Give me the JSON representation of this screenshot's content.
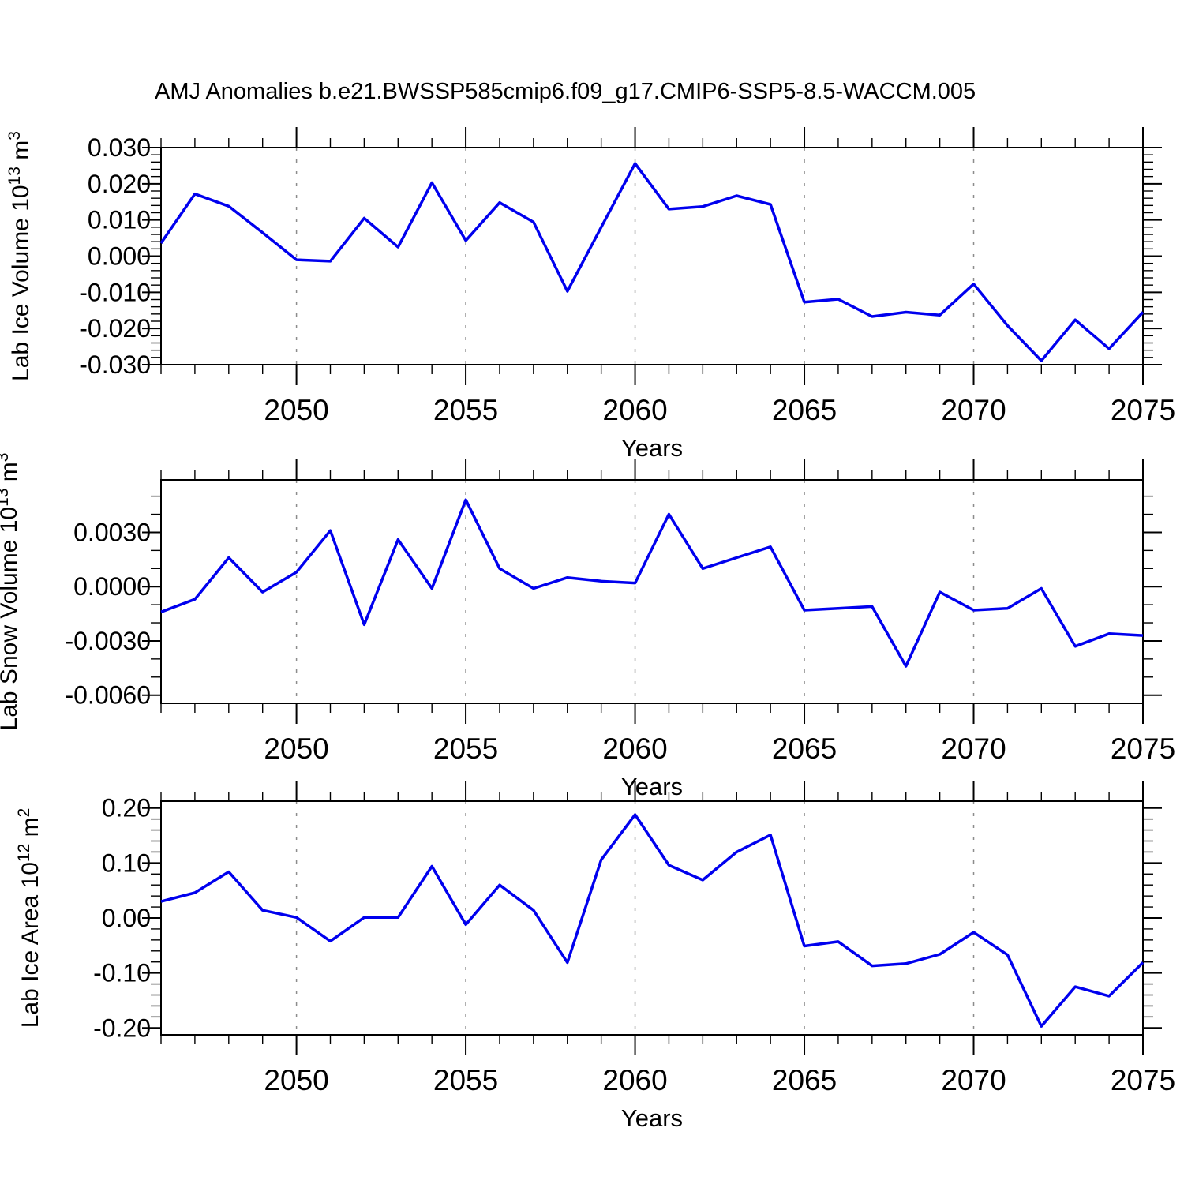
{
  "title": "AMJ Anomalies b.e21.BWSSP585cmip6.f09_g17.CMIP6-SSP5-8.5-WACCM.005",
  "style": {
    "line_color": "#0000ee",
    "grid_color": "#8c8c8c",
    "axis_color": "#000000",
    "background": "#ffffff"
  },
  "x_axis": {
    "label": "Years",
    "range": [
      2046,
      2075
    ],
    "minor_step": 1,
    "major_ticks": [
      {
        "v": 2050,
        "label": "2050"
      },
      {
        "v": 2055,
        "label": "2055"
      },
      {
        "v": 2060,
        "label": "2060"
      },
      {
        "v": 2065,
        "label": "2065"
      },
      {
        "v": 2070,
        "label": "2070"
      },
      {
        "v": 2075,
        "label": "2075"
      }
    ],
    "years": [
      2046,
      2047,
      2048,
      2049,
      2050,
      2051,
      2052,
      2053,
      2054,
      2055,
      2056,
      2057,
      2058,
      2059,
      2060,
      2061,
      2062,
      2063,
      2064,
      2065,
      2066,
      2067,
      2068,
      2069,
      2070,
      2071,
      2072,
      2073,
      2074,
      2075
    ]
  },
  "chart_data": [
    {
      "type": "line",
      "id": "lab-ice-volume",
      "ylabel_plain": "Lab Ice Volume 10^13 m^3",
      "ylabel_parts": [
        {
          "t": "Lab Ice Volume 10"
        },
        {
          "t": "13",
          "sup": true
        },
        {
          "t": " m"
        },
        {
          "t": "3",
          "sup": true
        }
      ],
      "ylim": [
        -0.03,
        0.03
      ],
      "yminor_step": 0.002,
      "yticks": [
        {
          "v": 0.03,
          "label": "0.030"
        },
        {
          "v": 0.02,
          "label": "0.020"
        },
        {
          "v": 0.01,
          "label": "0.010"
        },
        {
          "v": 0.0,
          "label": "0.000"
        },
        {
          "v": -0.01,
          "label": "-0.010"
        },
        {
          "v": -0.02,
          "label": "-0.020"
        },
        {
          "v": -0.03,
          "label": "-0.030"
        }
      ],
      "values": [
        0.0036,
        0.0172,
        0.0138,
        0.0065,
        -0.001,
        -0.0014,
        0.0105,
        0.0025,
        0.0203,
        0.0043,
        0.0148,
        0.0094,
        -0.0097,
        0.008,
        0.0256,
        0.013,
        0.0137,
        0.0167,
        0.0143,
        -0.0127,
        -0.0119,
        -0.0167,
        -0.0155,
        -0.0163,
        -0.0077,
        -0.0192,
        -0.0289,
        -0.0176,
        -0.0256,
        -0.0155
      ]
    },
    {
      "type": "line",
      "id": "lab-snow-volume",
      "ylabel_plain": "Lab Snow Volume 10^13 m^3",
      "ylabel_parts": [
        {
          "t": "Lab Snow Volume 10"
        },
        {
          "t": "13",
          "sup": true
        },
        {
          "t": " m"
        },
        {
          "t": "3",
          "sup": true
        }
      ],
      "ylim": [
        -0.00645,
        0.0059
      ],
      "yminor_step": 0.001,
      "yticks": [
        {
          "v": 0.003,
          "label": "0.0030"
        },
        {
          "v": 0.0,
          "label": "0.0000"
        },
        {
          "v": -0.003,
          "label": "-0.0030"
        },
        {
          "v": -0.006,
          "label": "-0.0060"
        }
      ],
      "values": [
        -0.0014,
        -0.0007,
        0.0016,
        -0.0003,
        0.0008,
        0.0031,
        -0.0021,
        0.0026,
        -0.0001,
        0.0048,
        0.001,
        -0.0001,
        0.0005,
        0.0003,
        0.0002,
        0.004,
        0.001,
        0.0016,
        0.0022,
        -0.0013,
        -0.0012,
        -0.0011,
        -0.0044,
        -0.0003,
        -0.0013,
        -0.0012,
        -0.0001,
        -0.0033,
        -0.0026,
        -0.0027
      ]
    },
    {
      "type": "line",
      "id": "lab-ice-area",
      "ylabel_plain": "Lab Ice Area 10^12 m^2",
      "ylabel_parts": [
        {
          "t": "Lab Ice Area 10"
        },
        {
          "t": "12",
          "sup": true
        },
        {
          "t": " m"
        },
        {
          "t": "2",
          "sup": true
        }
      ],
      "ylim": [
        -0.2125,
        0.2125
      ],
      "yminor_step": 0.02,
      "yticks": [
        {
          "v": 0.2,
          "label": "0.20"
        },
        {
          "v": 0.1,
          "label": "0.10"
        },
        {
          "v": 0.0,
          "label": "0.00"
        },
        {
          "v": -0.1,
          "label": "-0.10"
        },
        {
          "v": -0.2,
          "label": "-0.20"
        }
      ],
      "values": [
        0.03,
        0.046,
        0.084,
        0.014,
        0.001,
        -0.042,
        0.001,
        0.001,
        0.094,
        -0.012,
        0.06,
        0.014,
        -0.081,
        0.106,
        0.188,
        0.096,
        0.069,
        0.12,
        0.151,
        -0.051,
        -0.043,
        -0.087,
        -0.083,
        -0.066,
        -0.026,
        -0.067,
        -0.197,
        -0.125,
        -0.142,
        -0.081
      ]
    }
  ]
}
